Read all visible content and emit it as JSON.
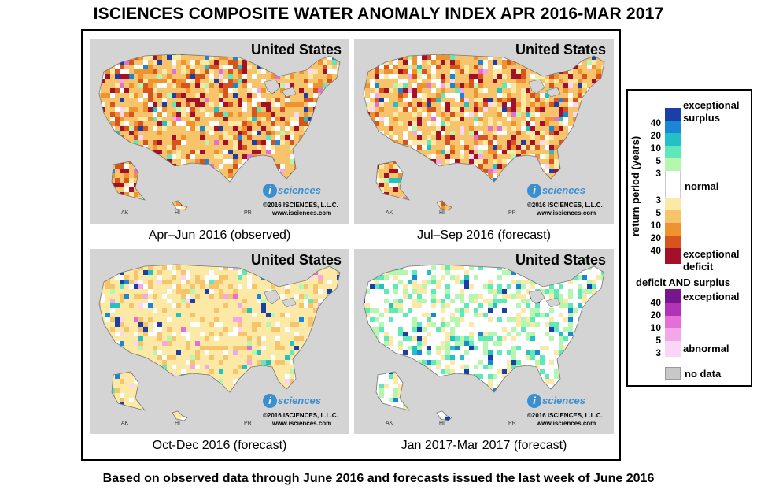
{
  "title": "ISCIENCES COMPOSITE WATER ANOMALY INDEX APR 2016-MAR 2017",
  "footer": "Based on observed data through June 2016 and forecasts issued the last week of June 2016",
  "panels": [
    {
      "title": "United States",
      "caption": "Apr–Jun 2016 (observed)",
      "logo": "sciences",
      "logo_i": "i",
      "copyright": "©2016 ISCIENCES, L.L.C.",
      "website": "www.isciences.com",
      "labels": {
        "ak": "AK",
        "hi": "HI",
        "pr": "PR"
      },
      "dominant": "deficit-severe"
    },
    {
      "title": "United States",
      "caption": "Jul–Sep 2016 (forecast)",
      "logo": "sciences",
      "logo_i": "i",
      "copyright": "©2016 ISCIENCES, L.L.C.",
      "website": "www.isciences.com",
      "labels": {
        "ak": "AK",
        "hi": "HI",
        "pr": "PR"
      },
      "dominant": "deficit-severe"
    },
    {
      "title": "United States",
      "caption": "Oct-Dec 2016 (forecast)",
      "logo": "sciences",
      "logo_i": "i",
      "copyright": "©2016 ISCIENCES, L.L.C.",
      "website": "www.isciences.com",
      "labels": {
        "ak": "AK",
        "hi": "HI",
        "pr": "PR"
      },
      "dominant": "deficit-mild"
    },
    {
      "title": "United States",
      "caption": "Jan 2017-Mar 2017 (forecast)",
      "logo": "sciences",
      "logo_i": "i",
      "copyright": "©2016 ISCIENCES, L.L.C.",
      "website": "www.isciences.com",
      "labels": {
        "ak": "AK",
        "hi": "HI",
        "pr": "PR"
      },
      "dominant": "surplus-mild"
    }
  ],
  "legend": {
    "axis_label": "return period (years)",
    "exceptional_surplus_1": "exceptional",
    "exceptional_surplus_2": "surplus",
    "normal": "normal",
    "exceptional_deficit_1": "exceptional",
    "exceptional_deficit_2": "deficit",
    "both_title": "deficit AND surplus",
    "both_exceptional": "exceptional",
    "both_abnormal": "abnormal",
    "no_data": "no data",
    "surplus_ticks": [
      "40",
      "20",
      "10",
      "5",
      "3"
    ],
    "deficit_ticks": [
      "3",
      "5",
      "10",
      "20",
      "40"
    ],
    "both_ticks": [
      "40",
      "20",
      "10",
      "5",
      "3"
    ],
    "surplus_colors": [
      "#1b3fa8",
      "#1a86d6",
      "#23c0c4",
      "#5fe8b8",
      "#b6f7b0"
    ],
    "normal_color": "#ffffff",
    "deficit_colors": [
      "#fde9a6",
      "#f7c46c",
      "#f0922e",
      "#d9531f",
      "#a3102a"
    ],
    "both_colors": [
      "#7a1590",
      "#b033b8",
      "#e36fd7",
      "#f3a6ea",
      "#fad5f5"
    ],
    "no_data_color": "#c8c8c8"
  }
}
